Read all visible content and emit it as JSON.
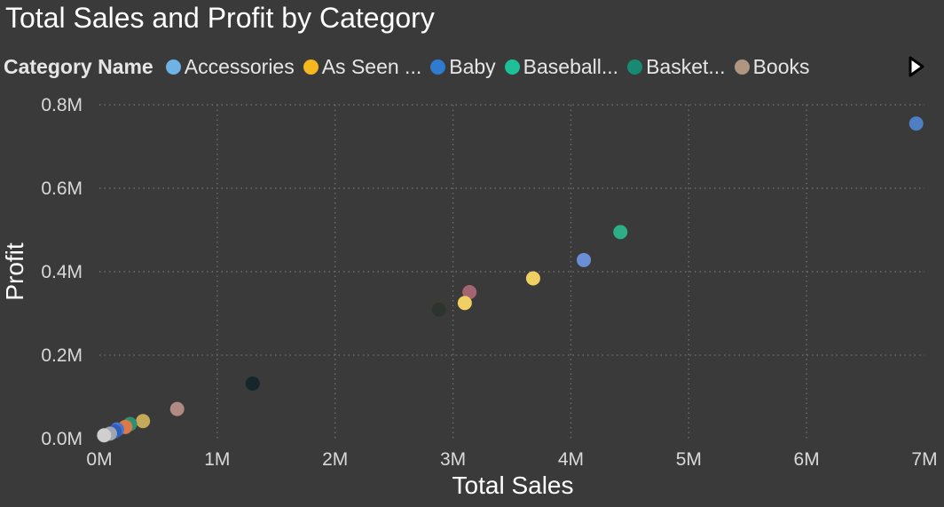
{
  "chart_data": {
    "type": "scatter",
    "title": "Total Sales and Profit by Category",
    "xlabel": "Total Sales",
    "ylabel": "Profit",
    "xlim": [
      0,
      7000000
    ],
    "ylim": [
      0,
      800000
    ],
    "x_ticks": [
      {
        "value": 0,
        "label": "0M"
      },
      {
        "value": 1000000,
        "label": "1M"
      },
      {
        "value": 2000000,
        "label": "2M"
      },
      {
        "value": 3000000,
        "label": "3M"
      },
      {
        "value": 4000000,
        "label": "4M"
      },
      {
        "value": 5000000,
        "label": "5M"
      },
      {
        "value": 6000000,
        "label": "6M"
      },
      {
        "value": 7000000,
        "label": "7M"
      }
    ],
    "y_ticks": [
      {
        "value": 0,
        "label": "0.0M"
      },
      {
        "value": 200000,
        "label": "0.2M"
      },
      {
        "value": 400000,
        "label": "0.4M"
      },
      {
        "value": 600000,
        "label": "0.6M"
      },
      {
        "value": 800000,
        "label": "0.8M"
      }
    ],
    "grid": true,
    "legend": {
      "title": "Category Name",
      "placement": "top-left",
      "entries": [
        {
          "label": "Accessories",
          "color": "#6fb3e6"
        },
        {
          "label": "As Seen ...",
          "color": "#f5b81e"
        },
        {
          "label": "Baby",
          "color": "#2f7bd0"
        },
        {
          "label": "Baseball...",
          "color": "#1fbf98"
        },
        {
          "label": "Basket...",
          "color": "#168a73"
        },
        {
          "label": "Books",
          "color": "#b09580"
        }
      ]
    },
    "points": [
      {
        "x": 6930000,
        "y": 755000,
        "color": "#4f7ec2"
      },
      {
        "x": 4420000,
        "y": 495000,
        "color": "#2fad87"
      },
      {
        "x": 4110000,
        "y": 428000,
        "color": "#6b8fd6"
      },
      {
        "x": 3680000,
        "y": 384000,
        "color": "#f0d062"
      },
      {
        "x": 3140000,
        "y": 351000,
        "color": "#a56570"
      },
      {
        "x": 3100000,
        "y": 325000,
        "color": "#f0d062"
      },
      {
        "x": 2880000,
        "y": 316000,
        "color": "#3e3a2e"
      },
      {
        "x": 2880000,
        "y": 309000,
        "color": "#2c3430"
      },
      {
        "x": 1300000,
        "y": 132000,
        "color": "#16272b"
      },
      {
        "x": 660000,
        "y": 71000,
        "color": "#b08a84"
      },
      {
        "x": 370000,
        "y": 42000,
        "color": "#c4aa58"
      },
      {
        "x": 260000,
        "y": 35000,
        "color": "#2f8f6e"
      },
      {
        "x": 220000,
        "y": 28000,
        "color": "#d97a48"
      },
      {
        "x": 150000,
        "y": 22000,
        "color": "#4a72d0"
      },
      {
        "x": 130000,
        "y": 17000,
        "color": "#2f5fb8"
      },
      {
        "x": 90000,
        "y": 12000,
        "color": "#9fa6b0"
      },
      {
        "x": 40000,
        "y": 8000,
        "color": "#cfcfcf"
      }
    ]
  },
  "colors": {
    "background": "#3a3a3a",
    "gridline": "#6a6a6a",
    "tick_text": "#d9d9d9"
  },
  "legend_next_icon": "play-right-icon"
}
